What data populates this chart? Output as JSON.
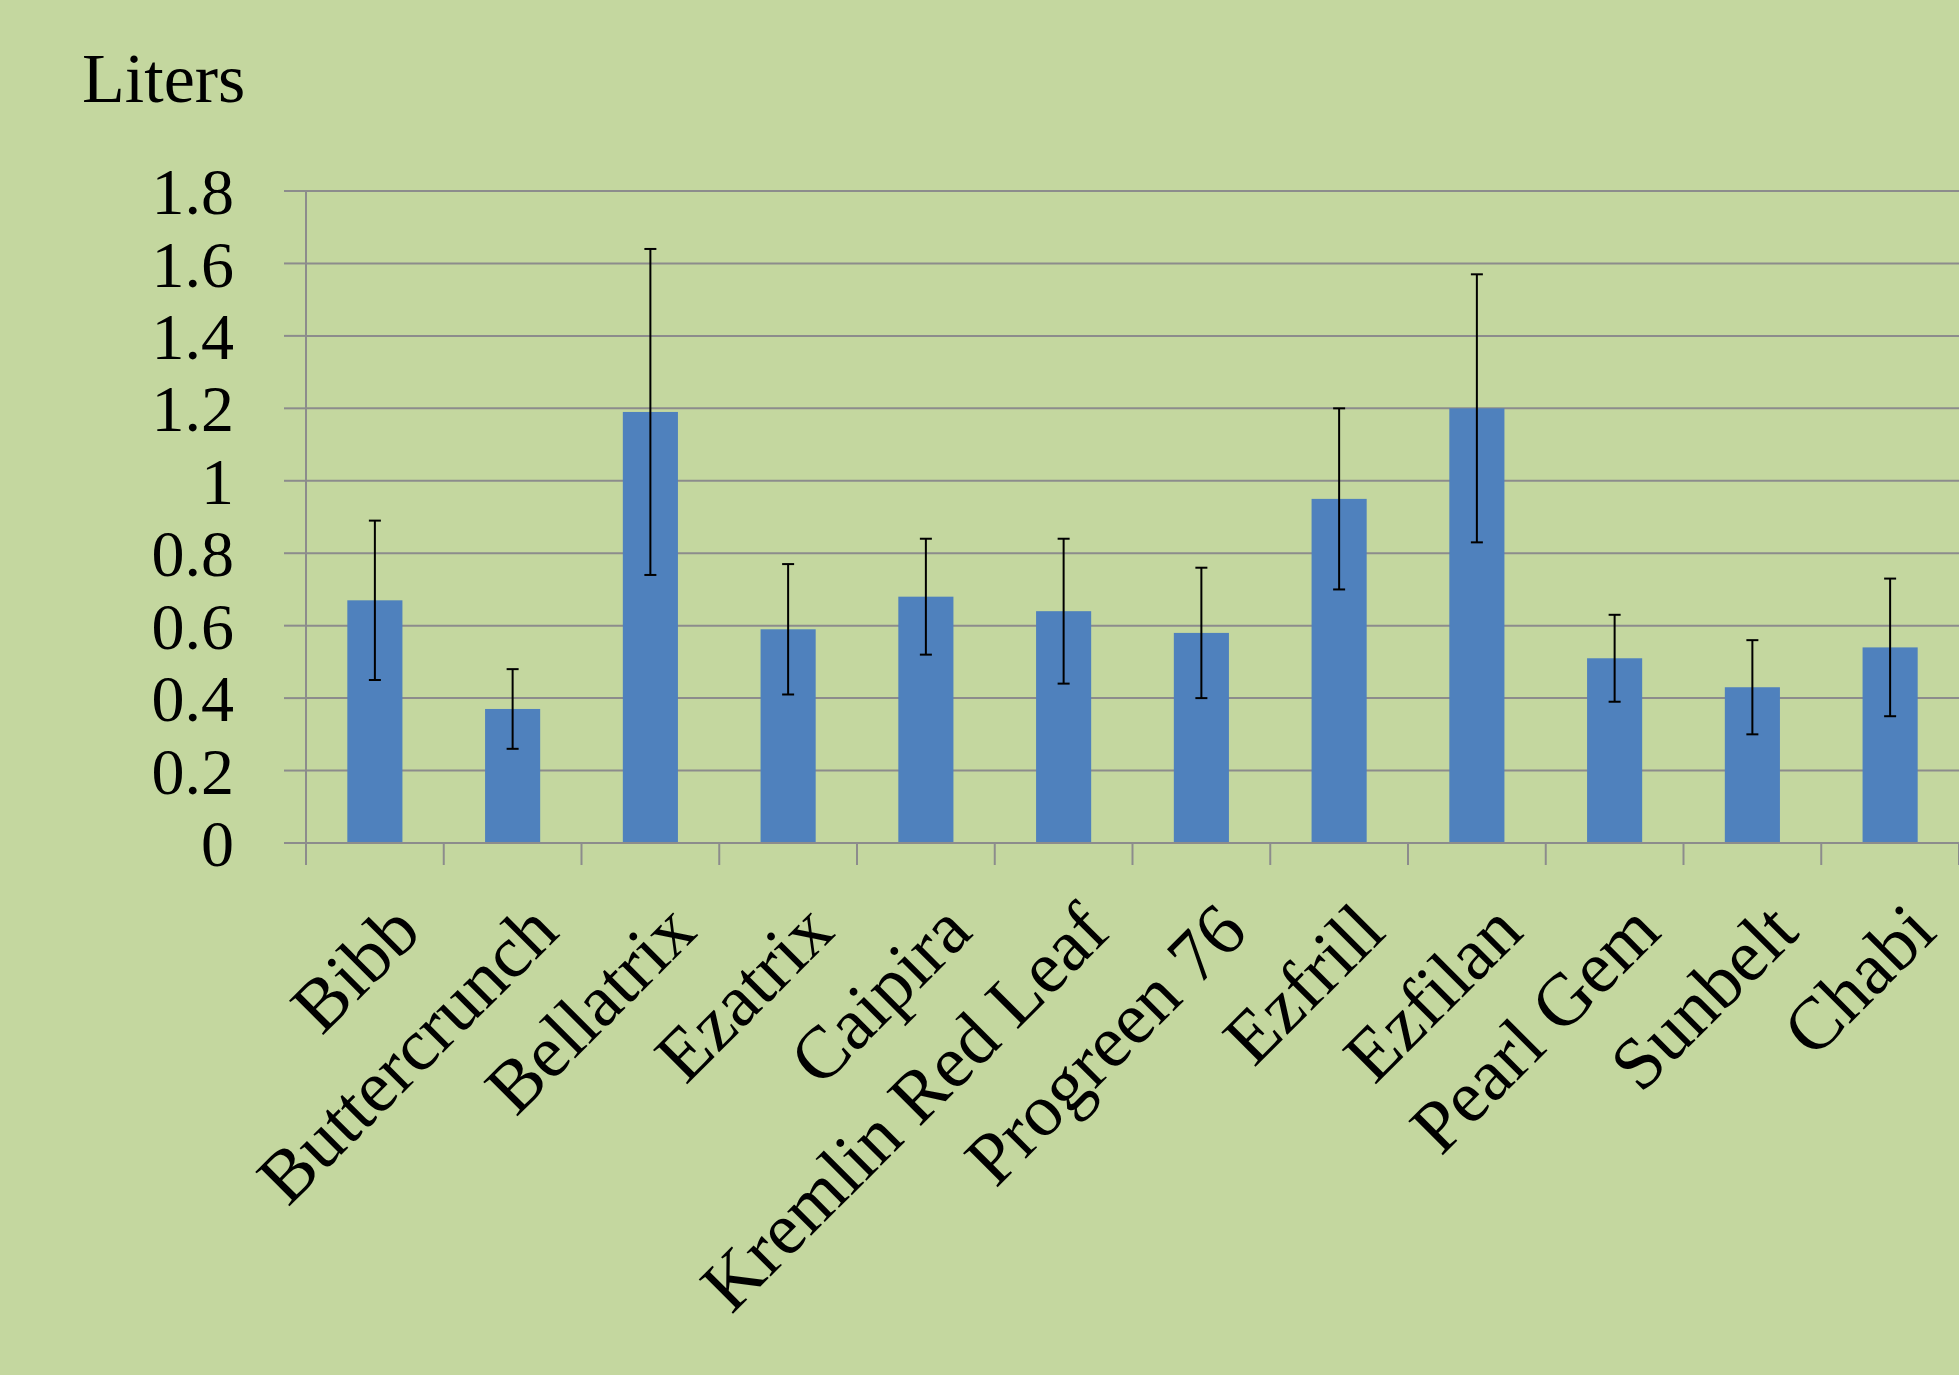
{
  "chart_data": {
    "type": "bar",
    "ylabel": "Liters",
    "categories": [
      "Bibb",
      "Buttercrunch",
      "Bellatrix",
      "Ezatrix",
      "Caipira",
      "Kremlin Red Leaf",
      "Progreen 76",
      "Ezfrill",
      "Ezfilan",
      "Pearl Gem",
      "Sunbelt",
      "Chabi"
    ],
    "values": [
      0.67,
      0.37,
      1.19,
      0.59,
      0.68,
      0.64,
      0.58,
      0.95,
      1.2,
      0.51,
      0.43,
      0.54
    ],
    "errors": [
      [
        0.45,
        0.89
      ],
      [
        0.26,
        0.48
      ],
      [
        0.74,
        1.64
      ],
      [
        0.41,
        0.77
      ],
      [
        0.52,
        0.84
      ],
      [
        0.44,
        0.84
      ],
      [
        0.4,
        0.76
      ],
      [
        0.7,
        1.2
      ],
      [
        0.83,
        1.57
      ],
      [
        0.39,
        0.63
      ],
      [
        0.3,
        0.56
      ],
      [
        0.35,
        0.73
      ]
    ],
    "color": "#4f81bd",
    "ylim": [
      0,
      1.8
    ],
    "yticks": [
      0,
      0.2,
      0.4,
      0.6,
      0.8,
      1,
      1.2,
      1.4,
      1.6,
      1.8
    ],
    "grid": "y"
  }
}
